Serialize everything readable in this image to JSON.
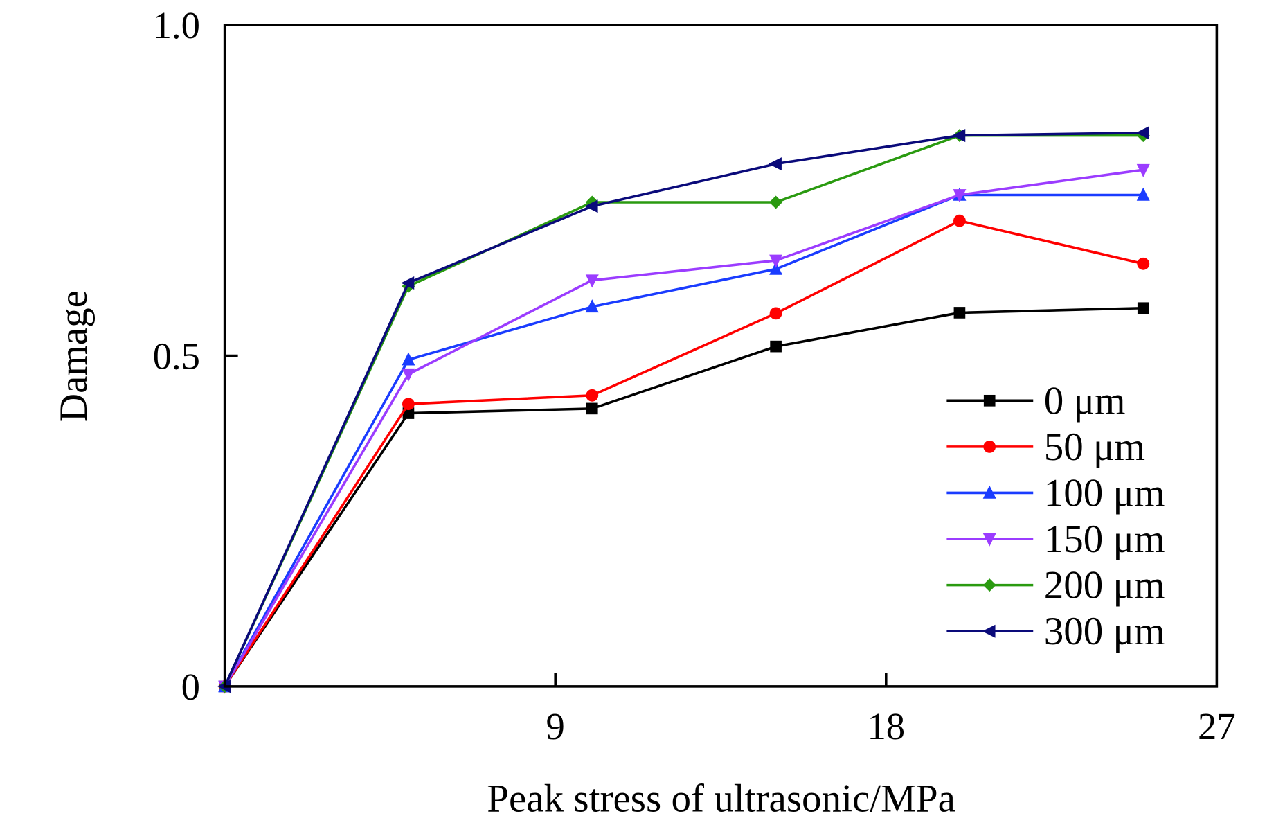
{
  "chart_data": {
    "type": "line",
    "title": "",
    "xlabel": "Peak stress of ultrasonic/MPa",
    "ylabel": "Damage",
    "xlim": [
      0,
      27
    ],
    "ylim": [
      0,
      1.0
    ],
    "xticks": [
      9,
      18,
      27
    ],
    "xtick_labels": [
      "9",
      "18",
      "27"
    ],
    "yticks": [
      0,
      0.5,
      1.0
    ],
    "ytick_labels": [
      "0",
      "0.5",
      "1.0"
    ],
    "grid": false,
    "legend_position": "bottom-right",
    "x": [
      0,
      5,
      10,
      15,
      20,
      25
    ],
    "series": [
      {
        "name": "0 μm",
        "color": "#000000",
        "marker": "square",
        "values": [
          0,
          0.413,
          0.42,
          0.514,
          0.565,
          0.572
        ]
      },
      {
        "name": "50 μm",
        "color": "#ff0000",
        "marker": "circle",
        "values": [
          0,
          0.427,
          0.44,
          0.564,
          0.704,
          0.639
        ]
      },
      {
        "name": "100 μm",
        "color": "#1a3cff",
        "marker": "triangle-up",
        "values": [
          0,
          0.494,
          0.574,
          0.631,
          0.743,
          0.743
        ]
      },
      {
        "name": "150 μm",
        "color": "#9b3cff",
        "marker": "triangle-down",
        "values": [
          0,
          0.472,
          0.614,
          0.644,
          0.743,
          0.781
        ]
      },
      {
        "name": "200 μm",
        "color": "#2a9a10",
        "marker": "diamond",
        "values": [
          0,
          0.605,
          0.732,
          0.732,
          0.833,
          0.833
        ]
      },
      {
        "name": "300 μm",
        "color": "#0a0a7a",
        "marker": "triangle-left",
        "values": [
          0,
          0.61,
          0.726,
          0.79,
          0.833,
          0.837
        ]
      }
    ]
  }
}
